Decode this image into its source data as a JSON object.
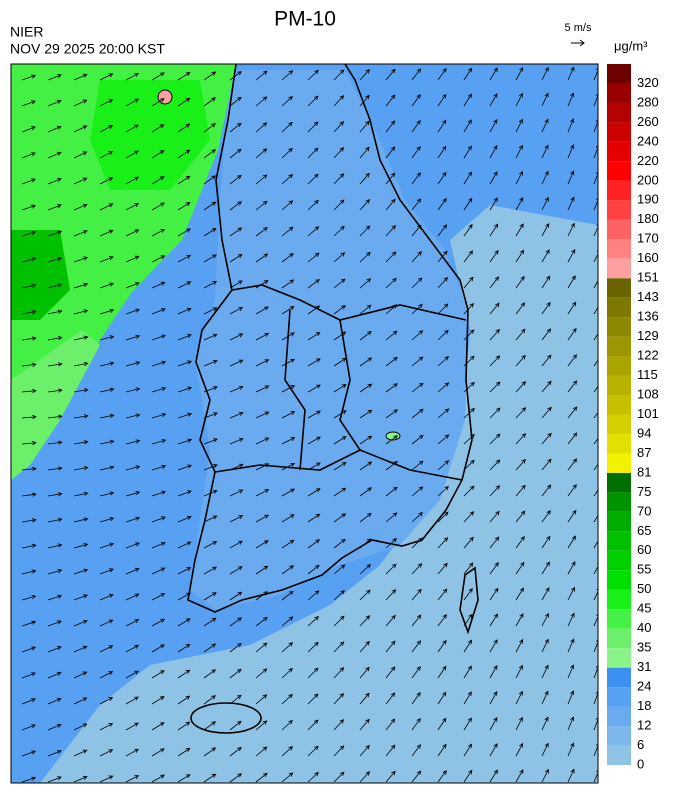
{
  "header": {
    "title": "PM-10",
    "agency": "NIER",
    "datetime": "NOV 29 2025 20:00 KST",
    "wind_scale": "5 m/s",
    "unit": "μg/m³"
  },
  "legend": {
    "levels": [
      0,
      6,
      12,
      18,
      24,
      31,
      35,
      40,
      45,
      50,
      55,
      60,
      65,
      70,
      75,
      81,
      87,
      94,
      101,
      108,
      115,
      122,
      129,
      136,
      143,
      151,
      160,
      170,
      180,
      190,
      200,
      220,
      240,
      260,
      280,
      320
    ],
    "colors": [
      "#8ec3e6",
      "#7db8ec",
      "#6aabf0",
      "#58a0f2",
      "#3c90f2",
      "#8af48a",
      "#6cf06c",
      "#44f044",
      "#18f018",
      "#00e000",
      "#00d000",
      "#00c000",
      "#00ac00",
      "#009400",
      "#007000",
      "#f2f200",
      "#e2e000",
      "#d4d000",
      "#c6c000",
      "#b8b200",
      "#aaa400",
      "#9c9600",
      "#8c8800",
      "#7c7800",
      "#6a6400",
      "#ffa0a0",
      "#ff8282",
      "#ff6262",
      "#ff4242",
      "#ff2222",
      "#ff0000",
      "#e40000",
      "#cc0000",
      "#b40000",
      "#980000",
      "#6e0000"
    ]
  }
}
